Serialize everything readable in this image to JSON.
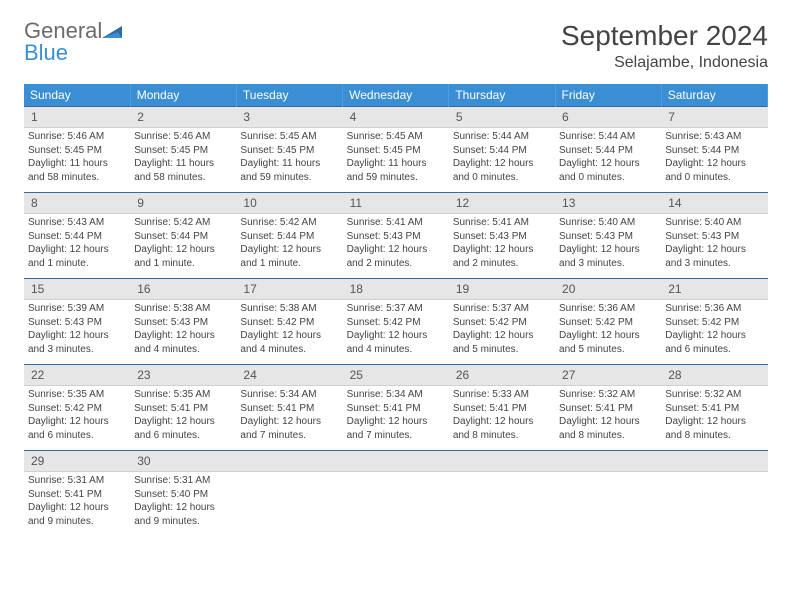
{
  "logo": {
    "word1": "General",
    "word2": "Blue"
  },
  "title": "September 2024",
  "location": "Selajambe, Indonesia",
  "colors": {
    "header_bg": "#3a8fd4",
    "header_text": "#ffffff",
    "daynum_bg": "#e6e6e6",
    "border_top": "#3a6a9a",
    "body_text": "#444444",
    "logo_gray": "#6b6b6b",
    "logo_blue": "#3a8fd4"
  },
  "day_names": [
    "Sunday",
    "Monday",
    "Tuesday",
    "Wednesday",
    "Thursday",
    "Friday",
    "Saturday"
  ],
  "weeks": [
    [
      {
        "n": "1",
        "sunrise": "Sunrise: 5:46 AM",
        "sunset": "Sunset: 5:45 PM",
        "daylight": "Daylight: 11 hours and 58 minutes."
      },
      {
        "n": "2",
        "sunrise": "Sunrise: 5:46 AM",
        "sunset": "Sunset: 5:45 PM",
        "daylight": "Daylight: 11 hours and 58 minutes."
      },
      {
        "n": "3",
        "sunrise": "Sunrise: 5:45 AM",
        "sunset": "Sunset: 5:45 PM",
        "daylight": "Daylight: 11 hours and 59 minutes."
      },
      {
        "n": "4",
        "sunrise": "Sunrise: 5:45 AM",
        "sunset": "Sunset: 5:45 PM",
        "daylight": "Daylight: 11 hours and 59 minutes."
      },
      {
        "n": "5",
        "sunrise": "Sunrise: 5:44 AM",
        "sunset": "Sunset: 5:44 PM",
        "daylight": "Daylight: 12 hours and 0 minutes."
      },
      {
        "n": "6",
        "sunrise": "Sunrise: 5:44 AM",
        "sunset": "Sunset: 5:44 PM",
        "daylight": "Daylight: 12 hours and 0 minutes."
      },
      {
        "n": "7",
        "sunrise": "Sunrise: 5:43 AM",
        "sunset": "Sunset: 5:44 PM",
        "daylight": "Daylight: 12 hours and 0 minutes."
      }
    ],
    [
      {
        "n": "8",
        "sunrise": "Sunrise: 5:43 AM",
        "sunset": "Sunset: 5:44 PM",
        "daylight": "Daylight: 12 hours and 1 minute."
      },
      {
        "n": "9",
        "sunrise": "Sunrise: 5:42 AM",
        "sunset": "Sunset: 5:44 PM",
        "daylight": "Daylight: 12 hours and 1 minute."
      },
      {
        "n": "10",
        "sunrise": "Sunrise: 5:42 AM",
        "sunset": "Sunset: 5:44 PM",
        "daylight": "Daylight: 12 hours and 1 minute."
      },
      {
        "n": "11",
        "sunrise": "Sunrise: 5:41 AM",
        "sunset": "Sunset: 5:43 PM",
        "daylight": "Daylight: 12 hours and 2 minutes."
      },
      {
        "n": "12",
        "sunrise": "Sunrise: 5:41 AM",
        "sunset": "Sunset: 5:43 PM",
        "daylight": "Daylight: 12 hours and 2 minutes."
      },
      {
        "n": "13",
        "sunrise": "Sunrise: 5:40 AM",
        "sunset": "Sunset: 5:43 PM",
        "daylight": "Daylight: 12 hours and 3 minutes."
      },
      {
        "n": "14",
        "sunrise": "Sunrise: 5:40 AM",
        "sunset": "Sunset: 5:43 PM",
        "daylight": "Daylight: 12 hours and 3 minutes."
      }
    ],
    [
      {
        "n": "15",
        "sunrise": "Sunrise: 5:39 AM",
        "sunset": "Sunset: 5:43 PM",
        "daylight": "Daylight: 12 hours and 3 minutes."
      },
      {
        "n": "16",
        "sunrise": "Sunrise: 5:38 AM",
        "sunset": "Sunset: 5:43 PM",
        "daylight": "Daylight: 12 hours and 4 minutes."
      },
      {
        "n": "17",
        "sunrise": "Sunrise: 5:38 AM",
        "sunset": "Sunset: 5:42 PM",
        "daylight": "Daylight: 12 hours and 4 minutes."
      },
      {
        "n": "18",
        "sunrise": "Sunrise: 5:37 AM",
        "sunset": "Sunset: 5:42 PM",
        "daylight": "Daylight: 12 hours and 4 minutes."
      },
      {
        "n": "19",
        "sunrise": "Sunrise: 5:37 AM",
        "sunset": "Sunset: 5:42 PM",
        "daylight": "Daylight: 12 hours and 5 minutes."
      },
      {
        "n": "20",
        "sunrise": "Sunrise: 5:36 AM",
        "sunset": "Sunset: 5:42 PM",
        "daylight": "Daylight: 12 hours and 5 minutes."
      },
      {
        "n": "21",
        "sunrise": "Sunrise: 5:36 AM",
        "sunset": "Sunset: 5:42 PM",
        "daylight": "Daylight: 12 hours and 6 minutes."
      }
    ],
    [
      {
        "n": "22",
        "sunrise": "Sunrise: 5:35 AM",
        "sunset": "Sunset: 5:42 PM",
        "daylight": "Daylight: 12 hours and 6 minutes."
      },
      {
        "n": "23",
        "sunrise": "Sunrise: 5:35 AM",
        "sunset": "Sunset: 5:41 PM",
        "daylight": "Daylight: 12 hours and 6 minutes."
      },
      {
        "n": "24",
        "sunrise": "Sunrise: 5:34 AM",
        "sunset": "Sunset: 5:41 PM",
        "daylight": "Daylight: 12 hours and 7 minutes."
      },
      {
        "n": "25",
        "sunrise": "Sunrise: 5:34 AM",
        "sunset": "Sunset: 5:41 PM",
        "daylight": "Daylight: 12 hours and 7 minutes."
      },
      {
        "n": "26",
        "sunrise": "Sunrise: 5:33 AM",
        "sunset": "Sunset: 5:41 PM",
        "daylight": "Daylight: 12 hours and 8 minutes."
      },
      {
        "n": "27",
        "sunrise": "Sunrise: 5:32 AM",
        "sunset": "Sunset: 5:41 PM",
        "daylight": "Daylight: 12 hours and 8 minutes."
      },
      {
        "n": "28",
        "sunrise": "Sunrise: 5:32 AM",
        "sunset": "Sunset: 5:41 PM",
        "daylight": "Daylight: 12 hours and 8 minutes."
      }
    ],
    [
      {
        "n": "29",
        "sunrise": "Sunrise: 5:31 AM",
        "sunset": "Sunset: 5:41 PM",
        "daylight": "Daylight: 12 hours and 9 minutes."
      },
      {
        "n": "30",
        "sunrise": "Sunrise: 5:31 AM",
        "sunset": "Sunset: 5:40 PM",
        "daylight": "Daylight: 12 hours and 9 minutes."
      },
      null,
      null,
      null,
      null,
      null
    ]
  ]
}
